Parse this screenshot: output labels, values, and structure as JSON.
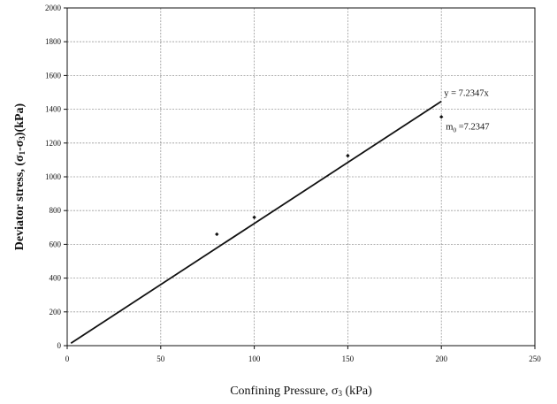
{
  "chart_data": {
    "type": "scatter",
    "title": "",
    "xlabel": "Confining Pressure, σ",
    "xlabel_sub": "3",
    "xlabel_unit": " (kPa)",
    "ylabel": "Deviator stress, (σ",
    "ylabel_sub1": "1",
    "ylabel_mid": "-σ",
    "ylabel_sub2": "3",
    "ylabel_unit": ")(kPa)",
    "xlim": [
      0,
      250
    ],
    "ylim": [
      0,
      2000
    ],
    "x_ticks": [
      0,
      50,
      100,
      150,
      200,
      250
    ],
    "y_ticks": [
      0,
      200,
      400,
      600,
      800,
      1000,
      1200,
      1400,
      1600,
      1800,
      2000
    ],
    "grid": true,
    "points": [
      {
        "x": 80,
        "y": 660
      },
      {
        "x": 100,
        "y": 760
      },
      {
        "x": 150,
        "y": 1125
      },
      {
        "x": 200,
        "y": 1355
      }
    ],
    "trendline": {
      "slope": 7.2347,
      "intercept": 0,
      "x_start": 2,
      "x_end": 200
    },
    "annotations": {
      "equation": "y = 7.2347x",
      "m0_prefix": "m",
      "m0_sub": "0",
      "m0_value": " =7.2347"
    },
    "colors": {
      "marker": "#111111",
      "line": "#111111",
      "grid": "#9a9a9a"
    }
  }
}
